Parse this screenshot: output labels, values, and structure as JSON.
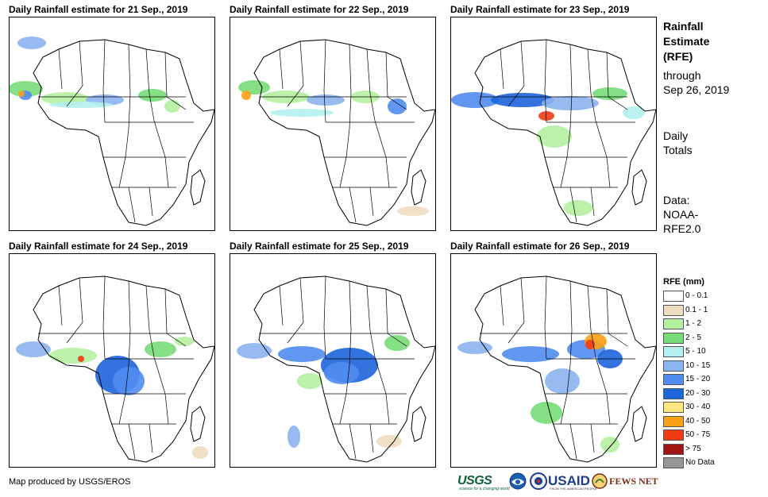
{
  "panels": [
    {
      "title": "Daily Rainfall estimate for 21 Sep., 2019"
    },
    {
      "title": "Daily Rainfall estimate for 22 Sep., 2019"
    },
    {
      "title": "Daily Rainfall estimate for 23 Sep., 2019"
    },
    {
      "title": "Daily Rainfall estimate for 24 Sep., 2019"
    },
    {
      "title": "Daily Rainfall estimate for 25 Sep., 2019"
    },
    {
      "title": "Daily Rainfall estimate for 26 Sep., 2019"
    }
  ],
  "sidebar": {
    "title_line1": "Rainfall",
    "title_line2": "Estimate",
    "title_line3": "(RFE)",
    "through": "through",
    "date": "Sep 26, 2019",
    "daily_line1": "Daily",
    "daily_line2": "Totals",
    "data_line1": "Data:",
    "data_line2": "NOAA-",
    "data_line3": "RFE2.0"
  },
  "legend": {
    "title": "RFE (mm)",
    "items": [
      {
        "label": "0 - 0.1",
        "color": "#ffffff"
      },
      {
        "label": "0.1 - 1",
        "color": "#f0dcc0"
      },
      {
        "label": "1 - 2",
        "color": "#b4f0a0"
      },
      {
        "label": "2 - 5",
        "color": "#78dc78"
      },
      {
        "label": "5 - 10",
        "color": "#b4f0f0"
      },
      {
        "label": "10 - 15",
        "color": "#8cb4f0"
      },
      {
        "label": "15 - 20",
        "color": "#508cf0"
      },
      {
        "label": "20 - 30",
        "color": "#1e64dc"
      },
      {
        "label": "30 - 40",
        "color": "#ffe682"
      },
      {
        "label": "40 - 50",
        "color": "#faa014"
      },
      {
        "label": "50 - 75",
        "color": "#f03c14"
      },
      {
        "label": "> 75",
        "color": "#a01414"
      },
      {
        "label": "No Data",
        "color": "#969696"
      }
    ]
  },
  "footer": {
    "credit": "Map produced by USGS/EROS",
    "usgs": "USGS",
    "usgs_tagline": "science for a changing world",
    "usaid": "USAID",
    "usaid_tagline": "FROM THE AMERICAN PEOPLE",
    "fews": "FEWS NET"
  }
}
